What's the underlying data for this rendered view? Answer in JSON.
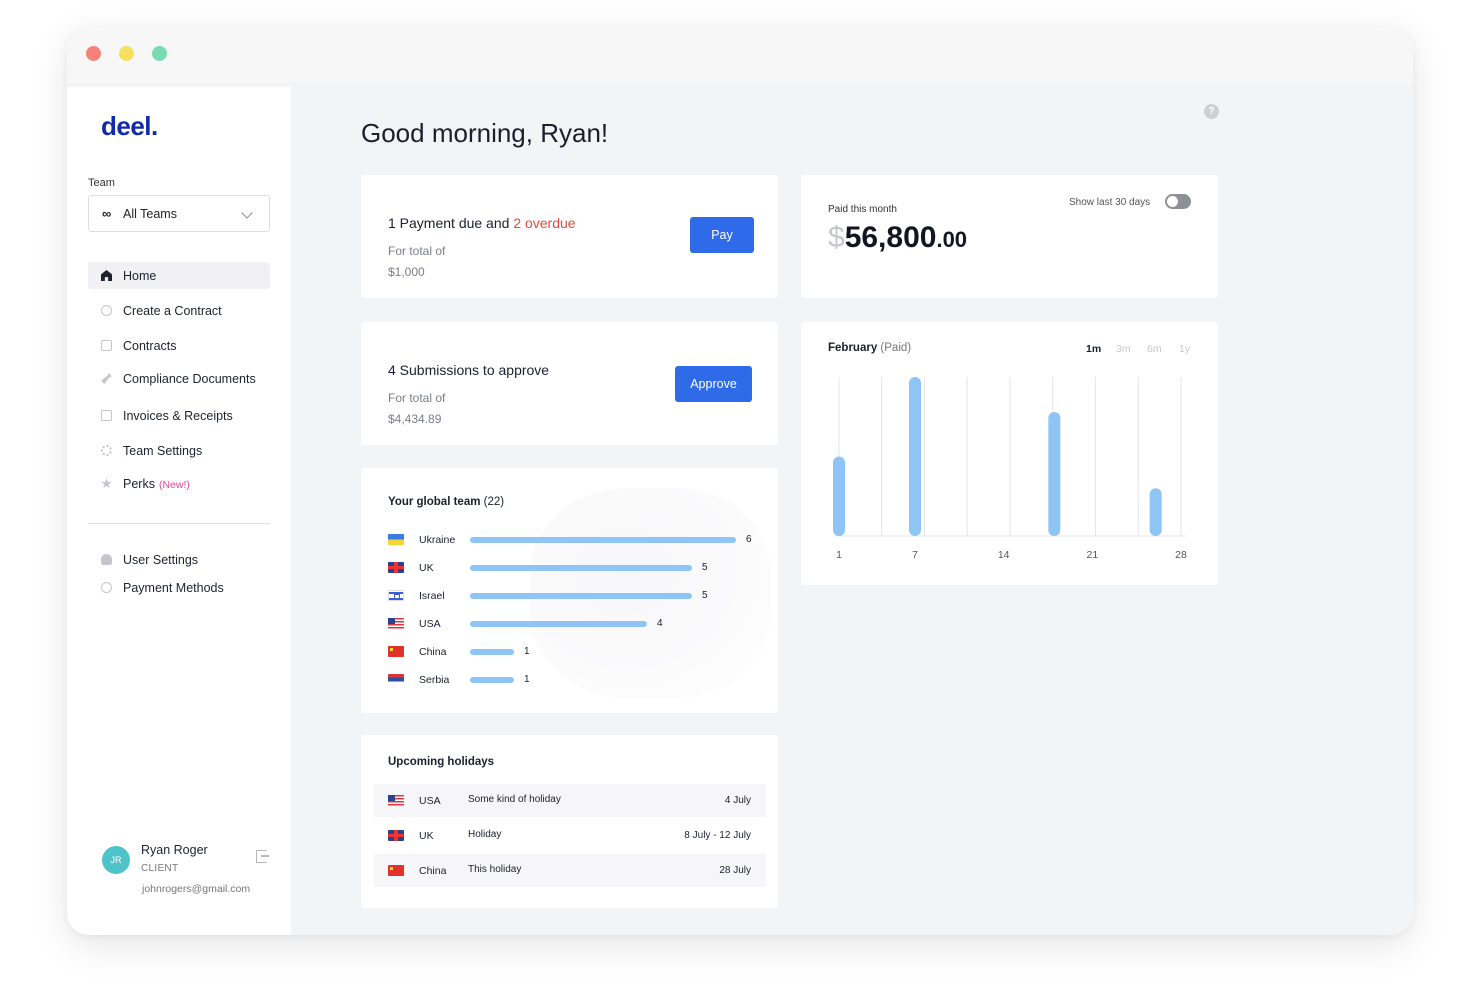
{
  "app": {
    "logo": "deel."
  },
  "sidebar": {
    "team_label": "Team",
    "team_select": {
      "icon": "infinity-icon",
      "value": "All Teams"
    },
    "items": [
      {
        "label": "Home",
        "icon": "home-icon",
        "active": true
      },
      {
        "label": "Create a Contract",
        "icon": "plus-circle-icon"
      },
      {
        "label": "Contracts",
        "icon": "document-icon"
      },
      {
        "label": "Compliance Documents",
        "icon": "wrench-icon"
      },
      {
        "label": "Invoices & Receipts",
        "icon": "receipt-icon"
      },
      {
        "label": "Team Settings",
        "icon": "gear-icon"
      },
      {
        "label": "Perks",
        "icon": "star-icon",
        "badge": "(New!)"
      }
    ],
    "secondary_items": [
      {
        "label": "User Settings",
        "icon": "user-icon"
      },
      {
        "label": "Payment Methods",
        "icon": "card-icon"
      }
    ],
    "profile": {
      "initials": "JR",
      "name": "Ryan Roger",
      "role": "CLIENT",
      "email": "johnrogers@gmail.com"
    }
  },
  "main": {
    "greeting": "Good morning, Ryan!",
    "payment_card": {
      "title_prefix": "1 Payment due and ",
      "title_overdue": "2 overdue",
      "sub_label": "For total of",
      "amount": "$1,000",
      "button": "Pay"
    },
    "submissions_card": {
      "title": "4 Submissions to approve",
      "sub_label": "For total of",
      "amount": "$4,434.89",
      "button": "Approve"
    },
    "paid_card": {
      "label": "Paid this month",
      "toggle_label": "Show last 30 days",
      "currency": "$",
      "amount": "56,800",
      "cents": ".00"
    },
    "chart_card": {
      "title": "February",
      "title_suffix": "(Paid)",
      "ranges": [
        "1m",
        "3m",
        "6m",
        "1y"
      ],
      "selected_range": "1m"
    },
    "team_card": {
      "title": "Your global team",
      "count": "(22)",
      "rows": [
        {
          "country": "Ukraine",
          "flag": "ua",
          "value": 6
        },
        {
          "country": "UK",
          "flag": "uk",
          "value": 5
        },
        {
          "country": "Israel",
          "flag": "il",
          "value": 5
        },
        {
          "country": "USA",
          "flag": "us",
          "value": 4
        },
        {
          "country": "China",
          "flag": "cn",
          "value": 1
        },
        {
          "country": "Serbia",
          "flag": "rs",
          "value": 1
        }
      ]
    },
    "holidays_card": {
      "title": "Upcoming holidays",
      "rows": [
        {
          "country": "USA",
          "flag": "us",
          "name": "Some kind of holiday",
          "date": "4 July"
        },
        {
          "country": "UK",
          "flag": "uk",
          "name": "Holiday",
          "date": "8 July - 12 July"
        },
        {
          "country": "China",
          "flag": "cn",
          "name": "This holiday",
          "date": "28 July"
        }
      ]
    }
  },
  "chart_data": {
    "type": "bar",
    "title": "February (Paid)",
    "x_ticks": [
      1,
      7,
      14,
      21,
      28
    ],
    "x": [
      1,
      7,
      18,
      26
    ],
    "values": [
      0.5,
      1.0,
      0.78,
      0.3
    ],
    "xlim": [
      1,
      28
    ],
    "ylim": [
      0,
      1
    ],
    "grid": true,
    "bar_color": "#8ec5f5"
  },
  "colors": {
    "accent": "#2f6be8",
    "logo": "#122aa8",
    "overdue": "#e8473b",
    "bar": "#8ec5f5",
    "badge": "#d9479a"
  }
}
